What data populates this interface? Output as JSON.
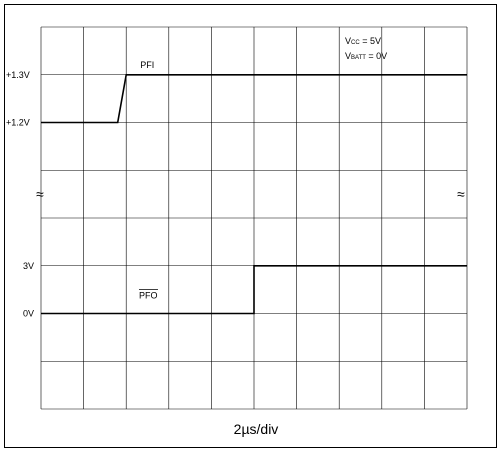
{
  "chart_data": {
    "type": "line",
    "title": "",
    "xlabel": "2µs/div",
    "ylabel": "",
    "grid": true,
    "grid_divisions": {
      "x": 10,
      "y": 8
    },
    "conditions": {
      "vcc": {
        "symbol": "V",
        "sub": "CC",
        "rest": " = 5V"
      },
      "vbatt": {
        "symbol": "V",
        "sub": "BATT",
        "rest": " = 0V"
      }
    },
    "break_symbol": "≈",
    "upper_panel": {
      "yticks": [
        {
          "value": 1.3,
          "label": "+1.3V"
        },
        {
          "value": 1.2,
          "label": "+1.2V"
        }
      ],
      "series": [
        {
          "name": "PFI",
          "x": [
            0,
            1.8,
            2.0,
            10
          ],
          "y": [
            1.2,
            1.2,
            1.3,
            1.3
          ]
        }
      ]
    },
    "lower_panel": {
      "yticks": [
        {
          "value": 3,
          "label": "3V"
        },
        {
          "value": 0,
          "label": "0V"
        }
      ],
      "series": [
        {
          "name": "PFO",
          "overline": true,
          "x": [
            0,
            5.0,
            5.0,
            10
          ],
          "y": [
            0,
            0,
            3,
            3
          ]
        }
      ]
    }
  }
}
